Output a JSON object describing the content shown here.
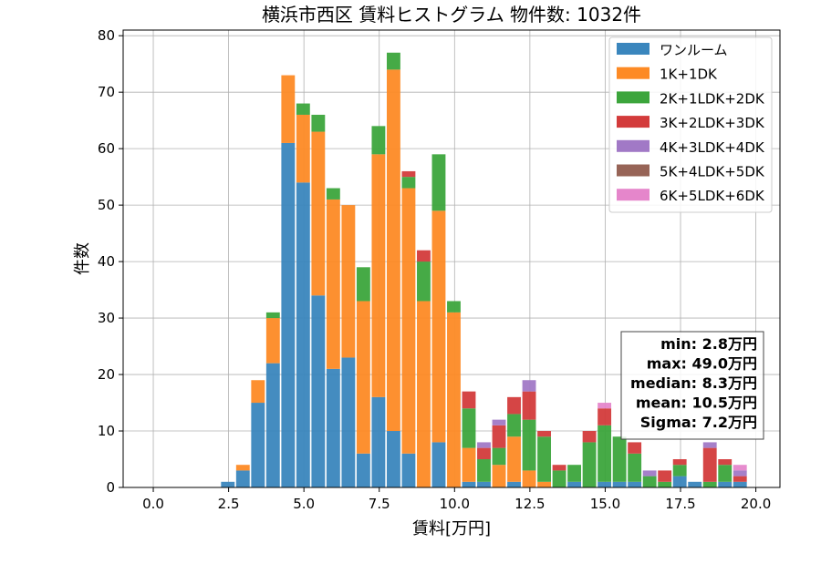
{
  "chart_data": {
    "type": "bar",
    "stacked": true,
    "title": "横浜市西区 賃料ヒストグラム 物件数: 1032件",
    "xlabel": "賃料[万円]",
    "ylabel": "件数",
    "xlim": [
      -1.0,
      20.8
    ],
    "ylim": [
      0,
      81
    ],
    "xticks": [
      0.0,
      2.5,
      5.0,
      7.5,
      10.0,
      12.5,
      15.0,
      17.5,
      20.0
    ],
    "xtick_labels": [
      "0.0",
      "2.5",
      "5.0",
      "7.5",
      "10.0",
      "12.5",
      "15.0",
      "17.5",
      "20.0"
    ],
    "yticks": [
      0,
      10,
      20,
      30,
      40,
      50,
      60,
      70,
      80
    ],
    "ytick_labels": [
      "0",
      "10",
      "20",
      "30",
      "40",
      "50",
      "60",
      "70",
      "80"
    ],
    "grid": true,
    "legend_position": "top-right",
    "bin_width": 0.5,
    "bar_width": 0.45,
    "bin_starts": [
      2.25,
      2.75,
      3.25,
      3.75,
      4.25,
      4.75,
      5.25,
      5.75,
      6.25,
      6.75,
      7.25,
      7.75,
      8.25,
      8.75,
      9.25,
      9.75,
      10.25,
      10.75,
      11.25,
      11.75,
      12.25,
      12.75,
      13.25,
      13.75,
      14.25,
      14.75,
      15.25,
      15.75,
      16.25,
      16.75,
      17.25,
      17.75,
      18.25,
      18.75,
      19.25
    ],
    "series": [
      {
        "name": "ワンルーム",
        "color": "#3a86bd",
        "values": [
          1,
          3,
          15,
          22,
          61,
          54,
          34,
          21,
          23,
          6,
          16,
          10,
          6,
          0,
          8,
          0,
          1,
          1,
          0,
          1,
          0,
          0,
          0,
          1,
          0,
          1,
          1,
          1,
          0,
          0,
          2,
          1,
          0,
          1,
          1
        ]
      },
      {
        "name": "1K+1DK",
        "color": "#fd8a25",
        "values": [
          0,
          1,
          4,
          8,
          12,
          12,
          29,
          30,
          27,
          27,
          43,
          64,
          47,
          33,
          41,
          31,
          6,
          0,
          4,
          8,
          3,
          1,
          0,
          0,
          0,
          0,
          0,
          0,
          0,
          0,
          0,
          0,
          0,
          0,
          0
        ]
      },
      {
        "name": "2K+1LDK+2DK",
        "color": "#3ca53c",
        "values": [
          0,
          0,
          0,
          1,
          0,
          2,
          3,
          2,
          0,
          6,
          5,
          3,
          2,
          7,
          10,
          2,
          7,
          4,
          3,
          4,
          9,
          8,
          3,
          3,
          8,
          10,
          8,
          5,
          2,
          1,
          2,
          0,
          1,
          3,
          0
        ]
      },
      {
        "name": "3K+2LDK+3DK",
        "color": "#d33b3b",
        "values": [
          0,
          0,
          0,
          0,
          0,
          0,
          0,
          0,
          0,
          0,
          0,
          0,
          1,
          2,
          0,
          0,
          3,
          2,
          4,
          3,
          5,
          1,
          1,
          0,
          2,
          3,
          0,
          2,
          0,
          2,
          1,
          0,
          6,
          1,
          1
        ]
      },
      {
        "name": "4K+3LDK+4DK",
        "color": "#a179c6",
        "values": [
          0,
          0,
          0,
          0,
          0,
          0,
          0,
          0,
          0,
          0,
          0,
          0,
          0,
          0,
          0,
          0,
          0,
          1,
          1,
          0,
          2,
          0,
          0,
          0,
          0,
          0,
          0,
          0,
          1,
          0,
          0,
          0,
          1,
          0,
          1
        ]
      },
      {
        "name": "5K+4LDK+5DK",
        "color": "#976457",
        "values": [
          0,
          0,
          0,
          0,
          0,
          0,
          0,
          0,
          0,
          0,
          0,
          0,
          0,
          0,
          0,
          0,
          0,
          0,
          0,
          0,
          0,
          0,
          0,
          0,
          0,
          0,
          0,
          0,
          0,
          0,
          0,
          0,
          0,
          0,
          0
        ]
      },
      {
        "name": "6K+5LDK+6DK",
        "color": "#e586cb",
        "values": [
          0,
          0,
          0,
          0,
          0,
          0,
          0,
          0,
          0,
          0,
          0,
          0,
          0,
          0,
          0,
          0,
          0,
          0,
          0,
          0,
          0,
          0,
          0,
          0,
          0,
          1,
          0,
          0,
          0,
          0,
          0,
          0,
          0,
          0,
          1
        ]
      }
    ],
    "stats_box": {
      "lines": [
        "min: 2.8万円",
        "max: 49.0万円",
        "median: 8.3万円",
        "mean: 10.5万円",
        "Sigma: 7.2万円"
      ],
      "position": "right"
    }
  }
}
